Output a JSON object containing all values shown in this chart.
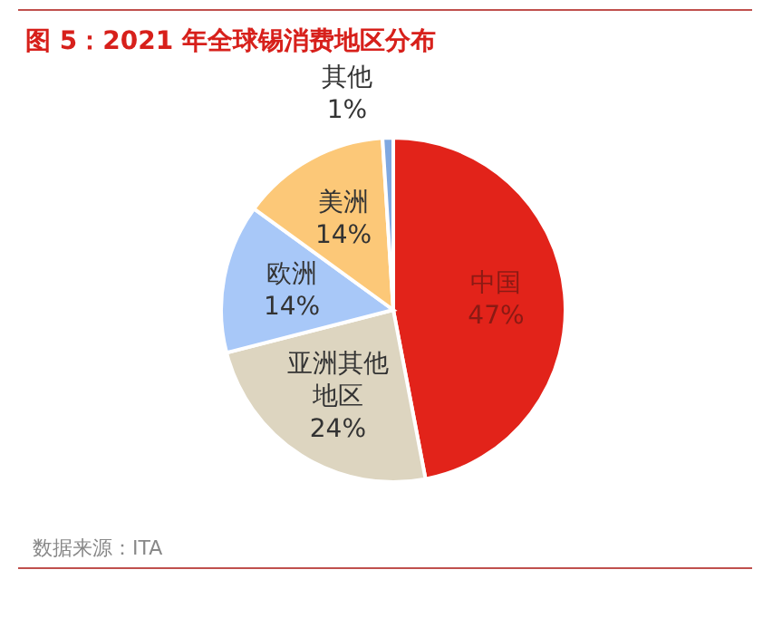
{
  "chart_data": {
    "type": "pie",
    "title": "图 5：2021 年全球锡消费地区分布",
    "categories": [
      "中国",
      "亚洲其他地区",
      "欧洲",
      "美洲",
      "其他"
    ],
    "values": [
      47,
      24,
      14,
      14,
      1
    ],
    "colors": [
      "#e2231a",
      "#ddd5c0",
      "#a8c8f8",
      "#fcc878",
      "#7fa8e0"
    ],
    "value_labels": [
      "47%",
      "24%",
      "14%",
      "14%",
      "1%"
    ],
    "annotations": [
      "数据来源：ITA"
    ]
  }
}
